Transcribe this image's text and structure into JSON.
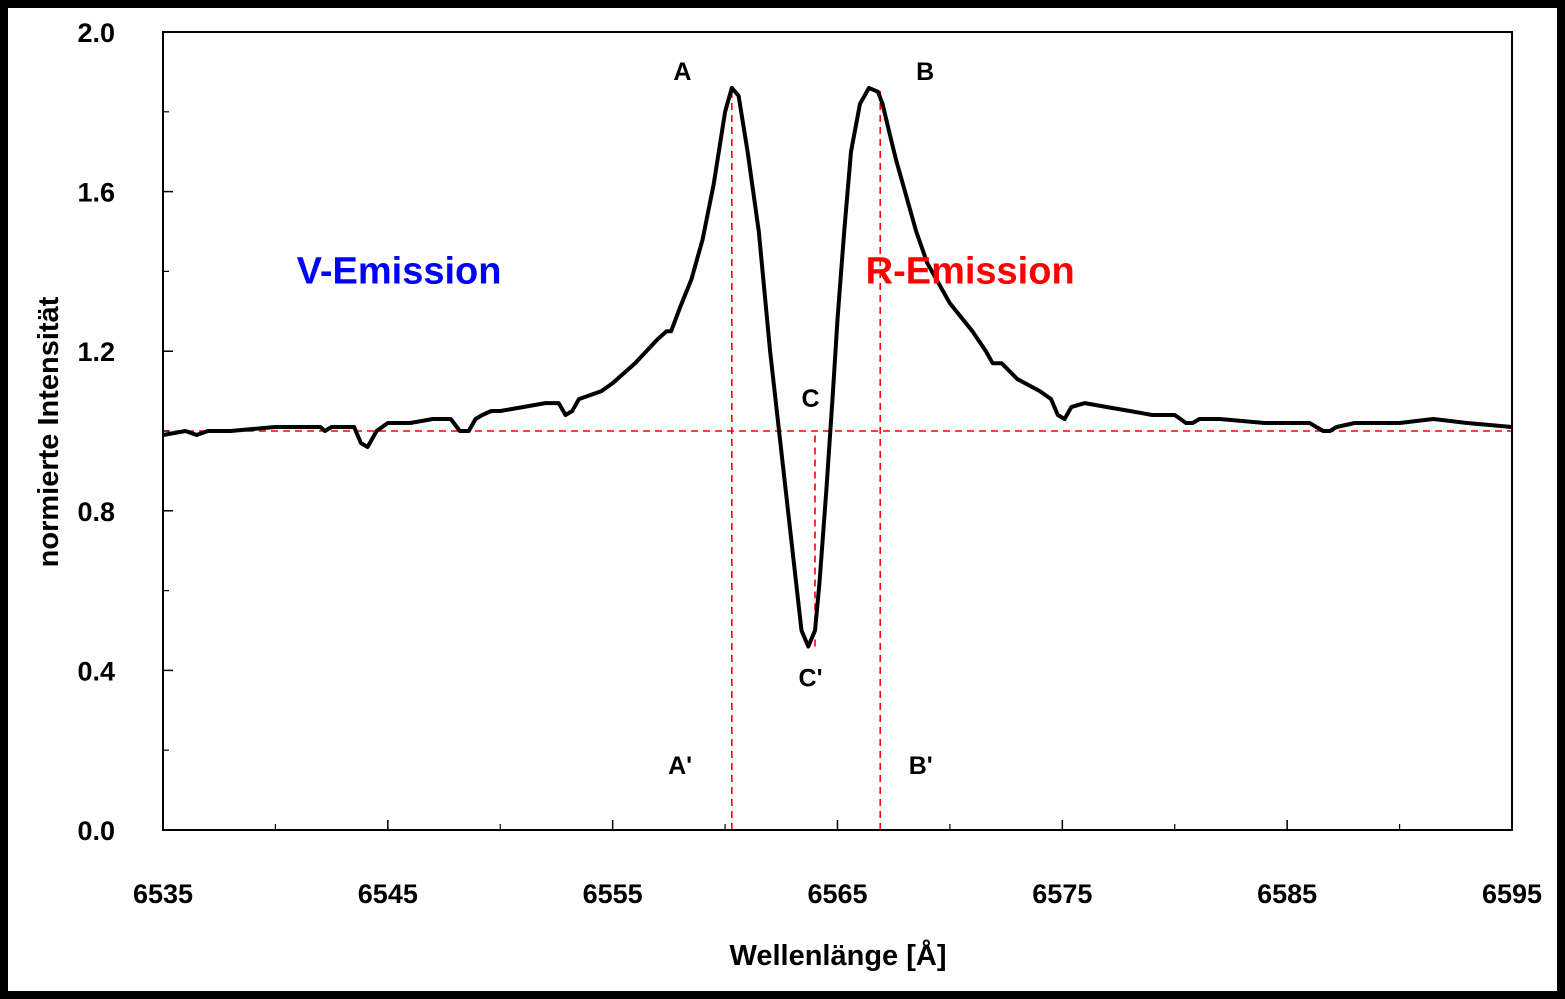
{
  "chart_data": {
    "type": "line",
    "xlabel": "Wellenlänge [Å]",
    "ylabel": "normierte Intensität",
    "xlim": [
      6535,
      6595
    ],
    "ylim": [
      0.0,
      2.0
    ],
    "x_ticks": [
      6535,
      6545,
      6555,
      6565,
      6575,
      6585,
      6595
    ],
    "x_tick_labels": [
      "6535",
      "6545",
      "6555",
      "6565",
      "6575",
      "6585",
      "6595"
    ],
    "y_ticks": [
      0.0,
      0.4,
      0.8,
      1.2,
      1.6,
      2.0
    ],
    "y_tick_labels": [
      "0.0",
      "0.4",
      "0.8",
      "1.2",
      "1.6",
      "2.0"
    ],
    "grid": false,
    "series": [
      {
        "color": "#000000",
        "x": [
          6535.0,
          6536.0,
          6536.5,
          6537.0,
          6538.0,
          6540.0,
          6542.0,
          6542.2,
          6542.5,
          6543.0,
          6543.5,
          6543.8,
          6544.1,
          6544.5,
          6545.0,
          6546.0,
          6547.0,
          6547.8,
          6548.2,
          6548.6,
          6548.9,
          6549.2,
          6549.6,
          6550.0,
          6551.0,
          6552.0,
          6552.6,
          6552.9,
          6553.2,
          6553.5,
          6554.0,
          6554.5,
          6555.0,
          6556.0,
          6557.0,
          6557.4,
          6557.6,
          6558.0,
          6558.5,
          6559.0,
          6559.5,
          6560.0,
          6560.3,
          6560.6,
          6561.0,
          6561.5,
          6562.0,
          6562.5,
          6563.0,
          6563.4,
          6563.7,
          6564.0,
          6564.2,
          6564.5,
          6564.8,
          6565.0,
          6565.3,
          6565.6,
          6566.0,
          6566.4,
          6566.8,
          6567.0,
          6567.3,
          6567.6,
          6568.0,
          6568.5,
          6569.0,
          6570.0,
          6571.0,
          6571.6,
          6571.9,
          6572.3,
          6573.0,
          6574.0,
          6574.5,
          6574.8,
          6575.1,
          6575.4,
          6576.0,
          6577.0,
          6578.0,
          6579.0,
          6580.0,
          6580.5,
          6580.8,
          6581.1,
          6582.0,
          6584.0,
          6586.0,
          6586.6,
          6586.9,
          6587.2,
          6588.0,
          6590.0,
          6591.5,
          6593.0,
          6595.0
        ],
        "y": [
          0.99,
          1.0,
          0.99,
          1.0,
          1.0,
          1.01,
          1.01,
          1.0,
          1.01,
          1.01,
          1.01,
          0.97,
          0.96,
          1.0,
          1.02,
          1.02,
          1.03,
          1.03,
          1.0,
          1.0,
          1.03,
          1.04,
          1.05,
          1.05,
          1.06,
          1.07,
          1.07,
          1.04,
          1.05,
          1.08,
          1.09,
          1.1,
          1.12,
          1.17,
          1.23,
          1.25,
          1.25,
          1.31,
          1.38,
          1.48,
          1.62,
          1.8,
          1.86,
          1.84,
          1.7,
          1.5,
          1.2,
          0.95,
          0.7,
          0.5,
          0.46,
          0.5,
          0.62,
          0.85,
          1.1,
          1.28,
          1.5,
          1.7,
          1.82,
          1.86,
          1.85,
          1.82,
          1.75,
          1.68,
          1.6,
          1.5,
          1.42,
          1.32,
          1.25,
          1.2,
          1.17,
          1.17,
          1.13,
          1.1,
          1.08,
          1.04,
          1.03,
          1.06,
          1.07,
          1.06,
          1.05,
          1.04,
          1.04,
          1.02,
          1.02,
          1.03,
          1.03,
          1.02,
          1.02,
          1.0,
          1.0,
          1.01,
          1.02,
          1.02,
          1.03,
          1.02,
          1.01
        ]
      }
    ],
    "reference_lines": [
      {
        "orientation": "horizontal",
        "y": 1.0,
        "color": "#ff0000",
        "style": "dashed"
      },
      {
        "orientation": "vertical",
        "x": 6560.3,
        "y_from": 0.0,
        "y_to": 1.86,
        "color": "#ff0000",
        "style": "dashed"
      },
      {
        "orientation": "vertical",
        "x": 6566.9,
        "y_from": 0.0,
        "y_to": 1.86,
        "color": "#ff0000",
        "style": "dashed"
      },
      {
        "orientation": "vertical",
        "x": 6564.0,
        "y_from": 0.46,
        "y_to": 1.0,
        "color": "#ff0000",
        "style": "dashed"
      }
    ],
    "point_labels": [
      {
        "text": "A",
        "x": 6558.1,
        "y": 1.88
      },
      {
        "text": "B",
        "x": 6568.9,
        "y": 1.88
      },
      {
        "text": "C",
        "x": 6563.8,
        "y": 1.06
      },
      {
        "text": "C'",
        "x": 6563.8,
        "y": 0.36
      },
      {
        "text": "A'",
        "x": 6558.0,
        "y": 0.14
      },
      {
        "text": "B'",
        "x": 6568.7,
        "y": 0.14
      }
    ],
    "region_labels": [
      {
        "text": "V-Emission",
        "color": "#0000ff",
        "x": 6545.5,
        "y": 1.37
      },
      {
        "text": "R-Emission",
        "color": "#ff0000",
        "x": 6570.9,
        "y": 1.37
      }
    ]
  }
}
